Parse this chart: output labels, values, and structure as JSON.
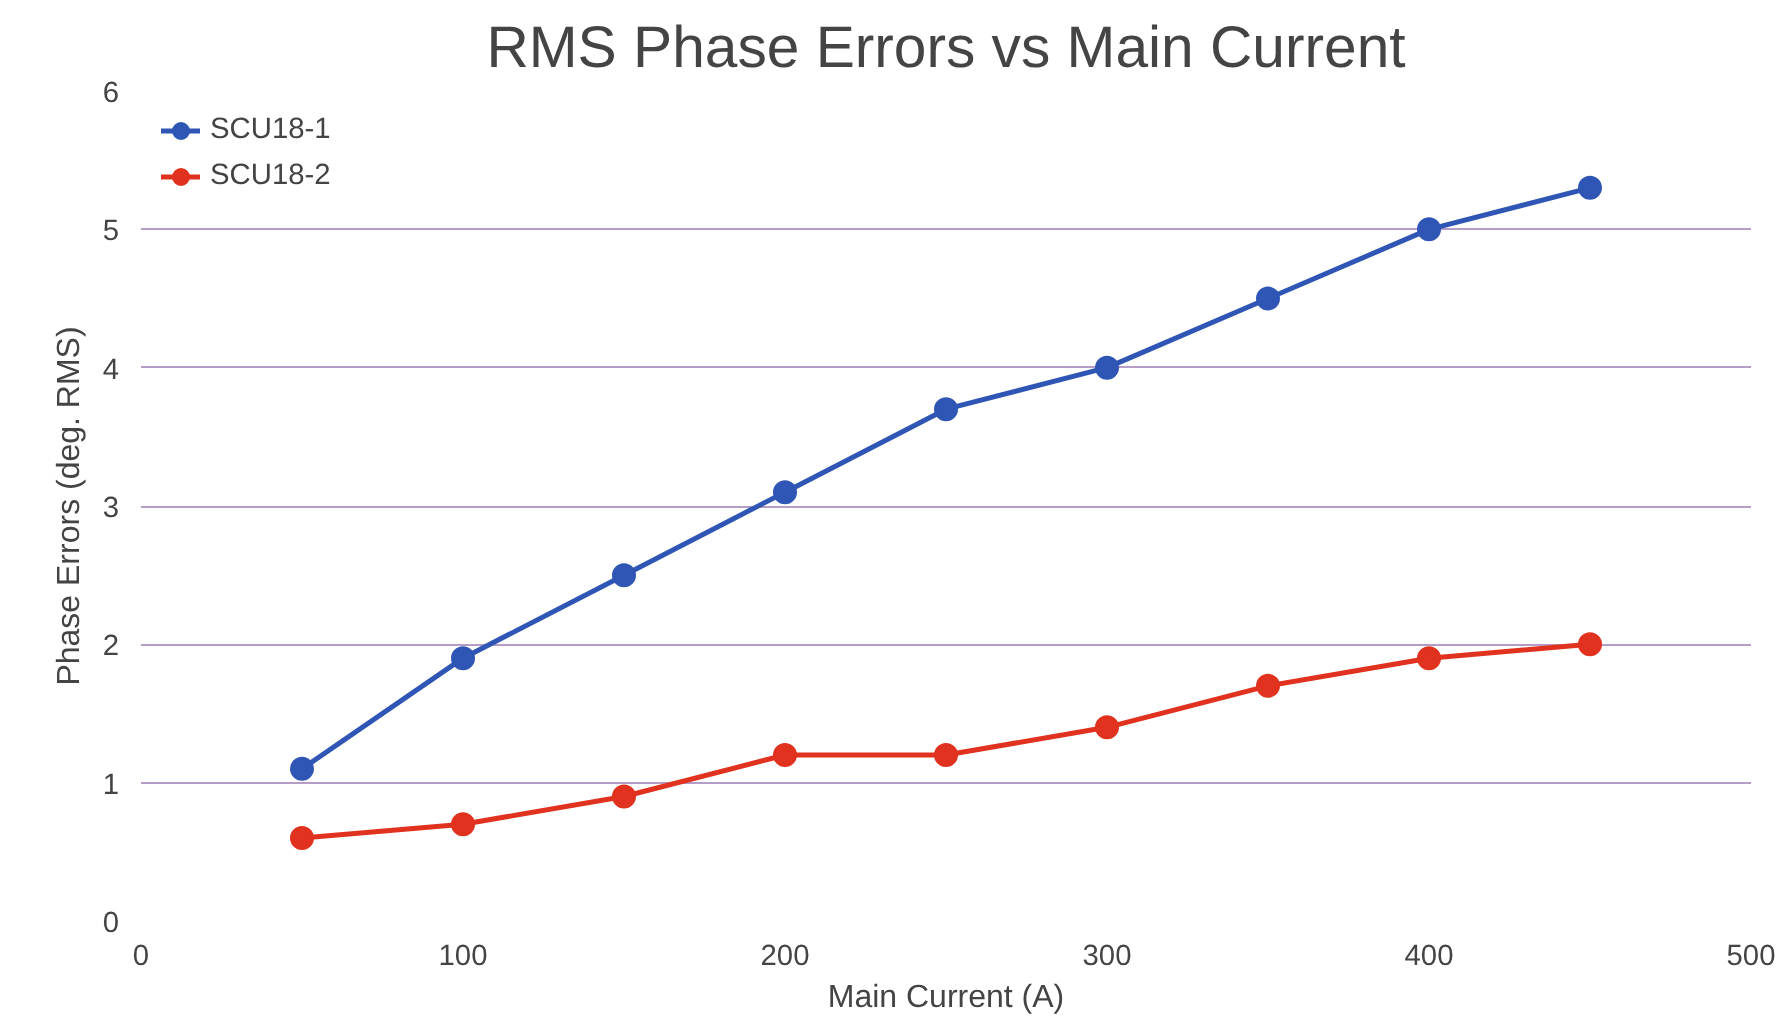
{
  "chart_data": {
    "type": "line",
    "title": "RMS Phase Errors vs Main Current",
    "xlabel": "Main Current (A)",
    "ylabel": "Phase Errors (deg. RMS)",
    "x": [
      50,
      100,
      150,
      200,
      250,
      300,
      350,
      400,
      450
    ],
    "series": [
      {
        "name": "SCU18-1",
        "color": "#2f56b5",
        "values": [
          1.1,
          1.9,
          2.5,
          3.1,
          3.7,
          4.0,
          4.5,
          5.0,
          5.3
        ]
      },
      {
        "name": "SCU18-2",
        "color": "#e0321e",
        "values": [
          0.6,
          0.7,
          0.9,
          1.2,
          1.2,
          1.4,
          1.7,
          1.9,
          2.0
        ]
      }
    ],
    "xlim": [
      0,
      500
    ],
    "xticks": [
      0,
      100,
      200,
      300,
      400,
      500
    ],
    "ylim": [
      0,
      6
    ],
    "yticks": [
      0,
      1,
      2,
      3,
      4,
      5,
      6
    ],
    "grid": "y",
    "legend": "top left",
    "marker": "circle",
    "line_style": "solid"
  }
}
